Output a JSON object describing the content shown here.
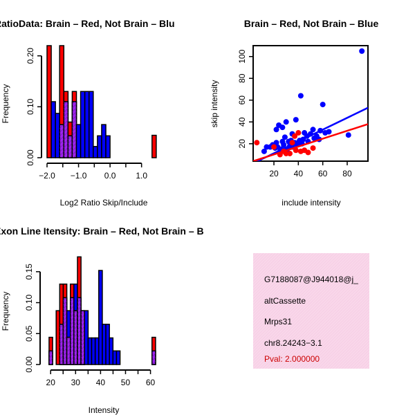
{
  "chart_data": [
    {
      "type": "bar",
      "title": "RatioData: Brain – Red, Not Brain – Blu",
      "xlabel": "Log2 Ratio Skip/Include",
      "ylabel": "Frequency",
      "xlim": [
        -2.0,
        1.6
      ],
      "ylim": [
        0,
        0.22
      ],
      "xticks": [
        -2.0,
        -1.0,
        0.0,
        1.0
      ],
      "xtick_labels": [
        "−2.0",
        "−1.0",
        "0.0",
        "1.0"
      ],
      "yticks": [
        0.0,
        0.1,
        0.2
      ],
      "ytick_labels": [
        "0.00",
        "0.10",
        "0.20"
      ],
      "bin_start": -2.0,
      "bin_width": 0.1333,
      "series": [
        {
          "name": "Brain",
          "color": "#ff0000",
          "values": [
            0.22,
            0,
            0,
            0.22,
            0.13,
            0.07,
            0.13,
            0,
            0,
            0,
            0,
            0,
            0,
            0,
            0,
            0,
            0,
            0,
            0,
            0,
            0,
            0,
            0,
            0,
            0,
            0.044
          ]
        },
        {
          "name": "Not Brain",
          "color": "#0000ff",
          "values": [
            0,
            0.11,
            0.087,
            0.065,
            0.11,
            0.043,
            0.11,
            0.065,
            0.13,
            0.13,
            0.13,
            0.022,
            0.043,
            0.065,
            0.043,
            0,
            0,
            0,
            0,
            0,
            0,
            0,
            0,
            0,
            0,
            0
          ]
        }
      ],
      "overlap_color": "#a020f0"
    },
    {
      "type": "scatter",
      "title": "Brain – Red, Not Brain – Blue",
      "xlabel": "include intensity",
      "ylabel": "skip intensity",
      "xlim": [
        3,
        97
      ],
      "ylim": [
        4,
        110
      ],
      "xticks": [
        20,
        40,
        60,
        80
      ],
      "yticks": [
        20,
        40,
        60,
        80,
        100
      ],
      "series": [
        {
          "name": "Not Brain",
          "color": "#0000ff",
          "x": [
            92,
            81,
            60,
            42,
            30,
            27,
            22,
            38,
            24,
            35,
            45,
            14,
            12,
            19,
            17,
            22,
            27,
            32,
            29,
            23,
            33,
            37,
            40,
            44,
            50,
            55,
            58,
            62,
            65,
            28,
            31,
            36,
            41,
            47,
            52,
            26,
            21,
            34,
            39,
            43,
            48,
            53,
            57,
            25,
            30,
            35
          ],
          "y": [
            105,
            28,
            56,
            64,
            40,
            35,
            33,
            42,
            37,
            29,
            30,
            17,
            13,
            19,
            17,
            21,
            22,
            22,
            26,
            17,
            18,
            21,
            21,
            24,
            29,
            27,
            32,
            30,
            31,
            19,
            15,
            20,
            23,
            27,
            33,
            15,
            16,
            23,
            19,
            20,
            22,
            25,
            24,
            13,
            12,
            17
          ],
          "fit": [
            [
              3,
              2
            ],
            [
              97,
              53
            ]
          ]
        },
        {
          "name": "Brain",
          "color": "#ff0000",
          "x": [
            6,
            20,
            33,
            38,
            40,
            45,
            28,
            35,
            48,
            52,
            25,
            42,
            30,
            37
          ],
          "y": [
            21,
            17,
            11,
            14,
            30,
            14,
            13,
            21,
            12,
            16,
            10,
            13,
            11,
            27
          ],
          "fit": [
            [
              3,
              4
            ],
            [
              97,
              38
            ]
          ]
        }
      ]
    },
    {
      "type": "bar",
      "title": "Exon Line Itensity: Brain – Red, Not Brain – B",
      "xlabel": "Intensity",
      "ylabel": "Frequency",
      "xlim": [
        18,
        64
      ],
      "ylim": [
        0,
        0.18
      ],
      "xticks": [
        20,
        30,
        40,
        50,
        60
      ],
      "xtick_labels": [
        "20",
        "30",
        "40",
        "50",
        "60"
      ],
      "yticks": [
        0.0,
        0.05,
        0.1,
        0.15
      ],
      "ytick_labels": [
        "0.00",
        "0.05",
        "0.10",
        "0.15"
      ],
      "bin_start": 19.37,
      "bin_width": 1.422,
      "series": [
        {
          "name": "Brain",
          "color": "#ff0000",
          "values": [
            0.044,
            0,
            0.087,
            0.13,
            0.13,
            0.044,
            0.13,
            0.087,
            0.174,
            0.087,
            0,
            0,
            0,
            0,
            0,
            0,
            0,
            0,
            0,
            0,
            0,
            0,
            0,
            0,
            0,
            0,
            0,
            0,
            0,
            0.044
          ]
        },
        {
          "name": "Not Brain",
          "color": "#0000ff",
          "values": [
            0.022,
            0,
            0,
            0.065,
            0.108,
            0.087,
            0.108,
            0.13,
            0.108,
            0.087,
            0.087,
            0.043,
            0.043,
            0.043,
            0.152,
            0.065,
            0.065,
            0.043,
            0.022,
            0.022,
            0,
            0,
            0,
            0,
            0,
            0,
            0,
            0,
            0,
            0.022
          ]
        }
      ],
      "overlap_color": "#a020f0"
    }
  ],
  "info": {
    "probe": "G7188087@J944018@j_",
    "event": "altCassette",
    "gene": "Mrps31",
    "location": "chr8.24243−3.1",
    "pval": "Pval: 2.000000",
    "pval_color": "#cc0000",
    "panel_color": "#f9d7ea"
  }
}
